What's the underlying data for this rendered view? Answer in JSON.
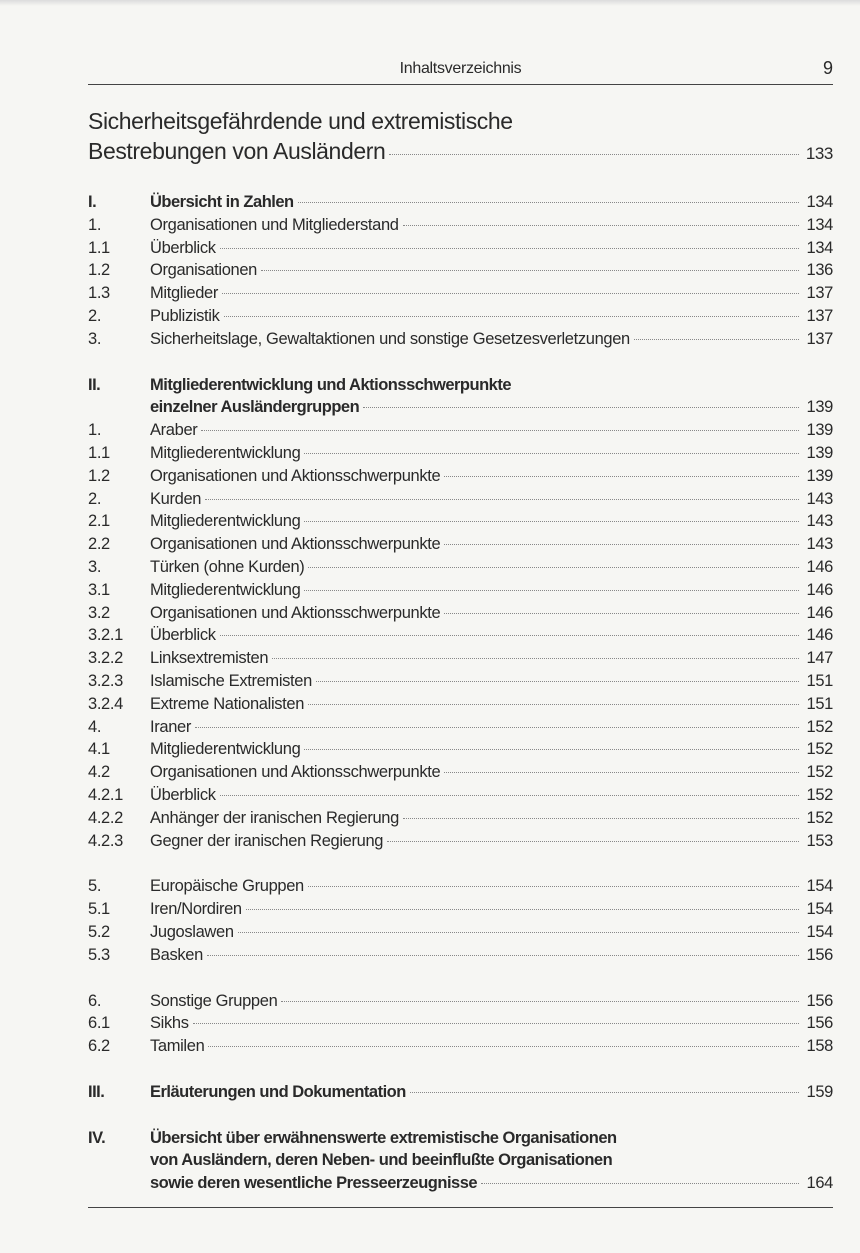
{
  "header": {
    "title": "Inhaltsverzeichnis",
    "page_number": "9"
  },
  "main_title": {
    "lines": [
      "Sicherheitsgefährdende und extremistische",
      "Bestrebungen von Ausländern"
    ],
    "page": "133"
  },
  "blocks": [
    [
      {
        "num": "I.",
        "lines": [
          "Übersicht in Zahlen"
        ],
        "page": "134",
        "bold": true
      },
      {
        "num": "1.",
        "lines": [
          "Organisationen und Mitgliederstand"
        ],
        "page": "134"
      },
      {
        "num": "1.1",
        "lines": [
          "Überblick"
        ],
        "page": "134"
      },
      {
        "num": "1.2",
        "lines": [
          "Organisationen"
        ],
        "page": "136"
      },
      {
        "num": "1.3",
        "lines": [
          "Mitglieder"
        ],
        "page": "137"
      },
      {
        "num": "2.",
        "lines": [
          "Publizistik"
        ],
        "page": "137"
      },
      {
        "num": "3.",
        "lines": [
          "Sicherheitslage, Gewaltaktionen und sonstige Gesetzesverletzungen"
        ],
        "page": "137"
      }
    ],
    [
      {
        "num": "II.",
        "lines": [
          "Mitgliederentwicklung und Aktionsschwerpunkte",
          "einzelner Ausländergruppen"
        ],
        "page": "139",
        "bold": true
      },
      {
        "num": "1.",
        "lines": [
          "Araber"
        ],
        "page": "139"
      },
      {
        "num": "1.1",
        "lines": [
          "Mitgliederentwicklung"
        ],
        "page": "139"
      },
      {
        "num": "1.2",
        "lines": [
          "Organisationen und Aktionsschwerpunkte"
        ],
        "page": "139"
      },
      {
        "num": "2.",
        "lines": [
          "Kurden"
        ],
        "page": "143"
      },
      {
        "num": "2.1",
        "lines": [
          "Mitgliederentwicklung"
        ],
        "page": "143"
      },
      {
        "num": "2.2",
        "lines": [
          "Organisationen und Aktionsschwerpunkte"
        ],
        "page": "143"
      },
      {
        "num": "3.",
        "lines": [
          "Türken (ohne Kurden)"
        ],
        "page": "146"
      },
      {
        "num": "3.1",
        "lines": [
          "Mitgliederentwicklung"
        ],
        "page": "146"
      },
      {
        "num": "3.2",
        "lines": [
          "Organisationen und Aktionsschwerpunkte"
        ],
        "page": "146"
      },
      {
        "num": "3.2.1",
        "lines": [
          "Überblick"
        ],
        "page": "146"
      },
      {
        "num": "3.2.2",
        "lines": [
          "Linksextremisten"
        ],
        "page": "147"
      },
      {
        "num": "3.2.3",
        "lines": [
          "Islamische Extremisten"
        ],
        "page": "151"
      },
      {
        "num": "3.2.4",
        "lines": [
          "Extreme Nationalisten"
        ],
        "page": "151"
      },
      {
        "num": "4.",
        "lines": [
          "Iraner"
        ],
        "page": "152"
      },
      {
        "num": "4.1",
        "lines": [
          "Mitgliederentwicklung"
        ],
        "page": "152"
      },
      {
        "num": "4.2",
        "lines": [
          "Organisationen und Aktionsschwerpunkte"
        ],
        "page": "152"
      },
      {
        "num": "4.2.1",
        "lines": [
          "Überblick"
        ],
        "page": "152"
      },
      {
        "num": "4.2.2",
        "lines": [
          "Anhänger der iranischen Regierung"
        ],
        "page": "152"
      },
      {
        "num": "4.2.3",
        "lines": [
          "Gegner der iranischen Regierung"
        ],
        "page": "153"
      }
    ],
    [
      {
        "num": "5.",
        "lines": [
          "Europäische Gruppen"
        ],
        "page": "154"
      },
      {
        "num": "5.1",
        "lines": [
          "Iren/Nordiren"
        ],
        "page": "154"
      },
      {
        "num": "5.2",
        "lines": [
          "Jugoslawen"
        ],
        "page": "154"
      },
      {
        "num": "5.3",
        "lines": [
          "Basken"
        ],
        "page": "156"
      }
    ],
    [
      {
        "num": "6.",
        "lines": [
          "Sonstige Gruppen"
        ],
        "page": "156"
      },
      {
        "num": "6.1",
        "lines": [
          "Sikhs"
        ],
        "page": "156"
      },
      {
        "num": "6.2",
        "lines": [
          "Tamilen"
        ],
        "page": "158"
      }
    ],
    [
      {
        "num": "III.",
        "lines": [
          "Erläuterungen und Dokumentation"
        ],
        "page": "159",
        "bold": true
      }
    ],
    [
      {
        "num": "IV.",
        "lines": [
          "Übersicht über erwähnenswerte extremistische Organisationen",
          "von Ausländern, deren Neben- und beeinflußte Organisationen",
          "sowie deren wesentliche Presseerzeugnisse"
        ],
        "page": "164",
        "bold": true
      }
    ]
  ]
}
